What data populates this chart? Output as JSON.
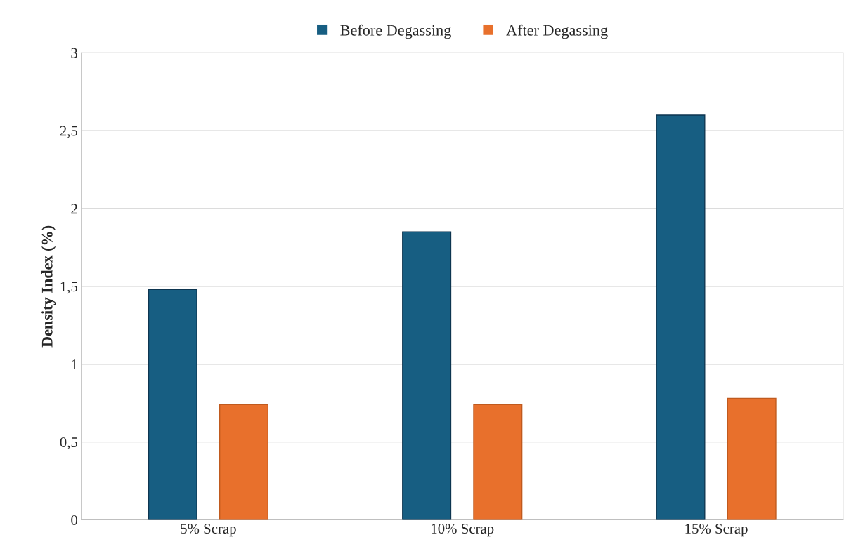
{
  "chart_data": {
    "type": "bar",
    "ylabel": "Density Index (%)",
    "categories": [
      "5% Scrap",
      "10% Scrap",
      "15% Scrap"
    ],
    "series": [
      {
        "name": "Before Degassing",
        "color": "#175e82",
        "values": [
          1.48,
          1.85,
          2.6
        ]
      },
      {
        "name": "After Degassing",
        "color": "#e8702c",
        "values": [
          0.74,
          0.74,
          0.78
        ]
      }
    ],
    "ylim": [
      0,
      3
    ],
    "yticks": [
      0,
      {
        "value": 0.5,
        "label": "0,5"
      },
      1,
      {
        "value": 1.5,
        "label": "1,5"
      },
      2,
      {
        "value": 2.5,
        "label": "2,5"
      },
      3
    ],
    "grid": "y",
    "legend": "top"
  }
}
